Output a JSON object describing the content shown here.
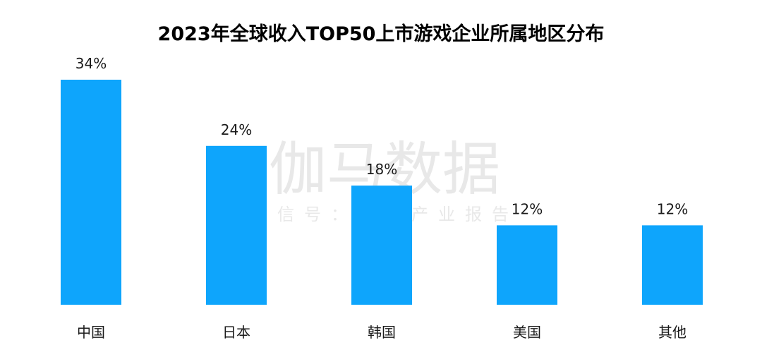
{
  "watermark": {
    "main": "伽马数据",
    "sub": "微信号：游戏产业报告"
  },
  "chart_data": {
    "type": "bar",
    "title": "2023年全球收入TOP50上市游戏企业所属地区分布",
    "categories": [
      "中国",
      "日本",
      "韩国",
      "美国",
      "其他"
    ],
    "values": [
      34,
      24,
      18,
      12,
      12
    ],
    "data_labels": [
      "34%",
      "24%",
      "18%",
      "12%",
      "12%"
    ],
    "unit": "%",
    "ylim": [
      0,
      34
    ],
    "grid": false,
    "legend": "none",
    "bar_color": "#0ea5fc"
  }
}
